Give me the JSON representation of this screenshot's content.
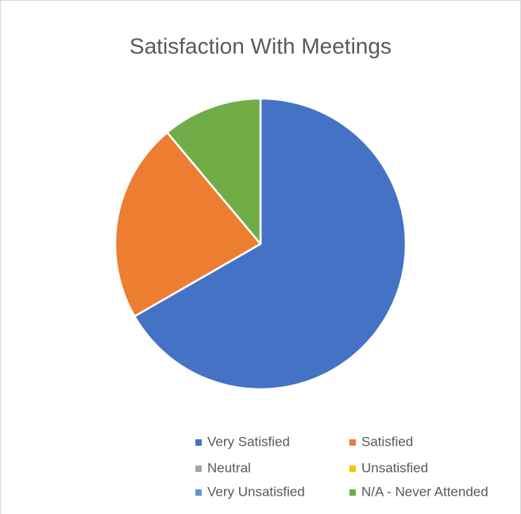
{
  "chart_data": {
    "type": "pie",
    "title": "Satisfaction With Meetings",
    "categories": [
      "Very Satisfied",
      "Satisfied",
      "Neutral",
      "Unsatisfied",
      "Very Unsatisfied",
      "N/A - Never Attended"
    ],
    "values": [
      66.7,
      22.2,
      0,
      0,
      0,
      11.1
    ],
    "colors": [
      "#4472c4",
      "#ed7d31",
      "#a5a5a5",
      "#ffc000",
      "#5b9bd5",
      "#70ad47"
    ],
    "legend": "bottom"
  }
}
